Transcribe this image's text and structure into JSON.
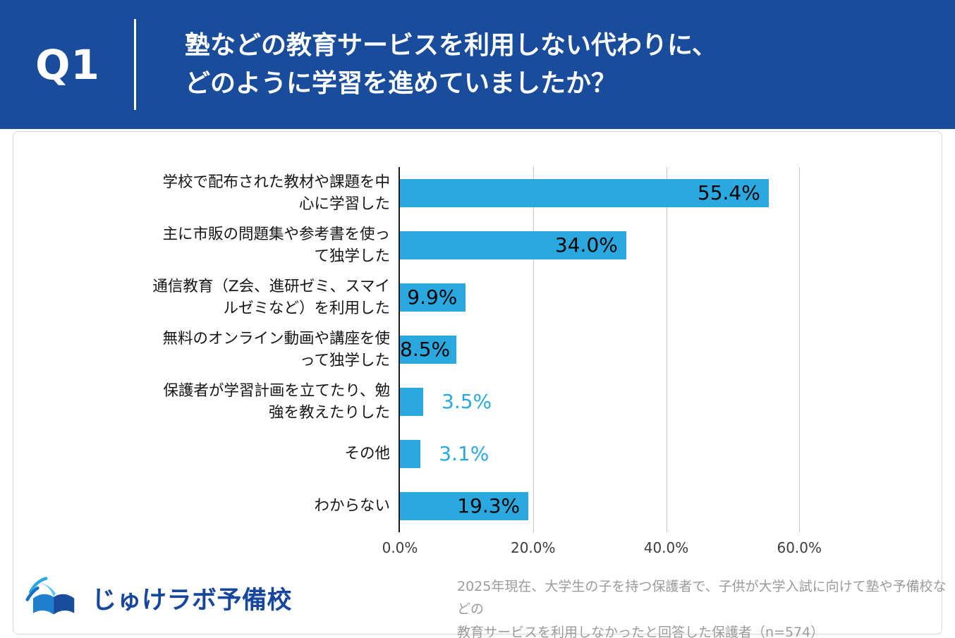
{
  "header": {
    "q_label": "Q1",
    "title": "塾などの教育サービスを利用しない代わりに、\nどのように学習を進めていましたか？"
  },
  "chart_data": {
    "type": "bar",
    "orientation": "horizontal",
    "categories": [
      "学校で配布された教材や課題を中\n心に学習した",
      "主に市販の問題集や参考書を使っ\nて独学した",
      "通信教育（Z会、進研ゼミ、スマイ\nルゼミなど）を利用した",
      "無料のオンライン動画や講座を使\nって独学した",
      "保護者が学習計画を立てたり、勉\n強を教えたりした",
      "その他",
      "わからない"
    ],
    "values": [
      55.4,
      34.0,
      9.9,
      8.5,
      3.5,
      3.1,
      19.3
    ],
    "value_labels": [
      "55.4%",
      "34.0%",
      "9.9%",
      "8.5%",
      "3.5%",
      "3.1%",
      "19.3%"
    ],
    "label_placement": [
      "inside",
      "inside",
      "inside",
      "inside",
      "outside",
      "outside",
      "inside"
    ],
    "x_ticks": [
      0,
      20,
      40,
      60
    ],
    "x_tick_labels": [
      "0.0%",
      "20.0%",
      "40.0%",
      "60.0%"
    ],
    "xlim": [
      0,
      80
    ],
    "grid": true,
    "legend": "none",
    "bar_color": "#29A9E0",
    "grid_color": "#c8c8c8",
    "inside_label_color": "#000000",
    "outside_label_color": "#29A9E0"
  },
  "footer": {
    "logo_text": "じゅけラボ予備校",
    "note": "2025年現在、大学生の子を持つ保護者で、子供が大学入試に向けて塾や予備校などの\n教育サービスを利用しなかったと回答した保護者（n=574）"
  },
  "colors": {
    "header_bg": "#1A4C9C",
    "logo_navy": "#17479D",
    "accent_blue": "#29A9E0"
  }
}
